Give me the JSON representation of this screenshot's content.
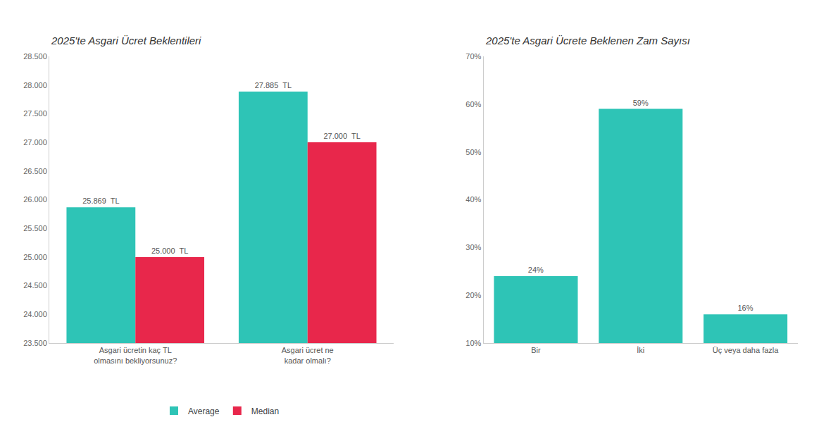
{
  "chart_data": [
    {
      "type": "bar",
      "title": "2025'te Asgari Ücret Beklentileri",
      "categories": [
        "Asgari ücretin kaç TL olmasını bekliyorsunuz?",
        "Asgari ücret ne kadar olmalı?"
      ],
      "series": [
        {
          "name": "Average",
          "color": "#2EC4B6",
          "values": [
            25869,
            27885
          ],
          "value_labels": [
            "25.869  TL",
            "27.885  TL"
          ]
        },
        {
          "name": "Median",
          "color": "#E8274B",
          "values": [
            25000,
            27000
          ],
          "value_labels": [
            "25.000  TL",
            "27.000  TL"
          ]
        }
      ],
      "ylim": [
        23500,
        28500
      ],
      "yticks": [
        {
          "value": 23500,
          "label": "23.500"
        },
        {
          "value": 24000,
          "label": "24.000"
        },
        {
          "value": 24500,
          "label": "24.500"
        },
        {
          "value": 25000,
          "label": "25.000"
        },
        {
          "value": 25500,
          "label": "25.500"
        },
        {
          "value": 26000,
          "label": "26.000"
        },
        {
          "value": 26500,
          "label": "26.500"
        },
        {
          "value": 27000,
          "label": "27.000"
        },
        {
          "value": 27500,
          "label": "27.500"
        },
        {
          "value": 28000,
          "label": "28.000"
        },
        {
          "value": 28500,
          "label": "28.500"
        }
      ],
      "grid": false,
      "legend": "bottom",
      "data_labels": true
    },
    {
      "type": "bar",
      "title": "2025'te Asgari Ücrete Beklenen Zam Sayısı",
      "categories": [
        "Bir",
        "İki",
        "Üç veya daha fazla"
      ],
      "values": [
        0.24,
        0.59,
        0.16
      ],
      "value_labels": [
        "24%",
        "59%",
        "16%"
      ],
      "color": "#2EC4B6",
      "ylim": [
        0.1,
        0.7
      ],
      "yticks": [
        {
          "value": 0.1,
          "label": "10%"
        },
        {
          "value": 0.2,
          "label": "20%"
        },
        {
          "value": 0.3,
          "label": "30%"
        },
        {
          "value": 0.4,
          "label": "40%"
        },
        {
          "value": 0.5,
          "label": "50%"
        },
        {
          "value": 0.6,
          "label": "60%"
        },
        {
          "value": 0.7,
          "label": "70%"
        }
      ],
      "grid": false,
      "data_labels": true
    }
  ]
}
